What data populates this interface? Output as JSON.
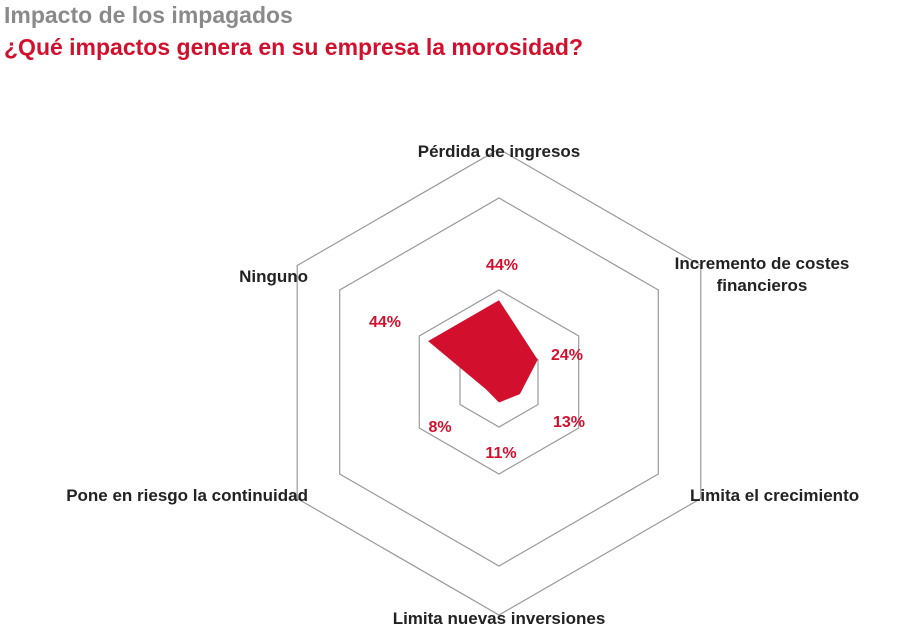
{
  "title": "Impacto de los impagados",
  "subtitle": "¿Qué impactos genera en su empresa la morosidad?",
  "colors": {
    "accent": "#d2102e",
    "grid": "#9a9a9a",
    "title": "#8a8a8a",
    "label": "#222222"
  },
  "chart_data": {
    "type": "radar",
    "categories": [
      "Pérdida de ingresos",
      "Incremento de costes financieros",
      "Limita el crecimiento",
      "Limita nuevas inversiones",
      "Pone en riesgo la continuidad",
      "Ninguno"
    ],
    "category_lines": [
      [
        "Pérdida de ingresos"
      ],
      [
        "Incremento de costes",
        "financieros"
      ],
      [
        "Limita el crecimiento"
      ],
      [
        "Limita nuevas inversiones"
      ],
      [
        "Pone en riesgo la continuidad"
      ],
      [
        "Ninguno"
      ]
    ],
    "values": [
      44,
      24,
      13,
      11,
      8,
      44
    ],
    "value_labels": [
      "44%",
      "24%",
      "13%",
      "11%",
      "8%",
      "44%"
    ],
    "unit": "%",
    "rings": 4,
    "grid": true
  }
}
